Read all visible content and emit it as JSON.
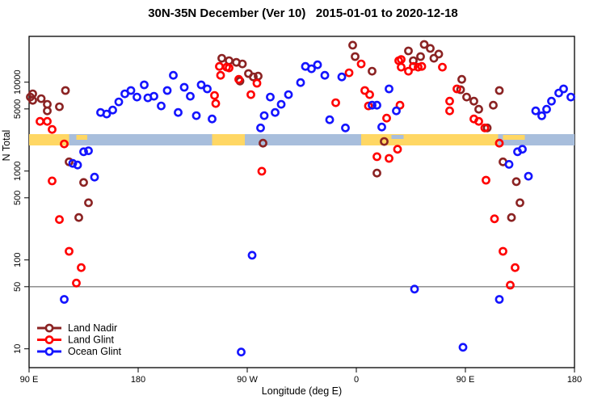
{
  "title": "30N-35N December (Ver 10)   2015-01-01 to 2020-12-18",
  "axes": {
    "x": {
      "label": "Longitude (deg E)",
      "ticks": [
        {
          "pos": 0,
          "label": "90 E"
        },
        {
          "pos": 90,
          "label": "180"
        },
        {
          "pos": 180,
          "label": "90 W"
        },
        {
          "pos": 270,
          "label": "0"
        },
        {
          "pos": 360,
          "label": "90 E"
        },
        {
          "pos": 450,
          "label": "180"
        }
      ],
      "range_deg_along_axis": [
        0,
        450
      ],
      "note": "axis runs 90E -> 180 -> 90W -> 0 -> 90E -> 180 (450 deg total)"
    },
    "y": {
      "label": "N Total",
      "scale": "log",
      "ticks": [
        "10",
        "50",
        "100",
        "500",
        "1000",
        "5000",
        "10000"
      ],
      "tick_values": [
        10,
        50,
        100,
        500,
        1000,
        5000,
        10000
      ],
      "range": [
        6,
        33000
      ]
    }
  },
  "reference_line": {
    "y_value": 50,
    "color": "#555555"
  },
  "surface_band": {
    "description": "land/ocean strip map across 30N-35N",
    "ocean_color": "#A8BEDC",
    "land_color": "#FFD764",
    "segments": [
      {
        "type": "land",
        "from": 0,
        "to": 33
      },
      {
        "type": "ocean",
        "from": 33,
        "to": 151
      },
      {
        "type": "land",
        "from": 151,
        "to": 178
      },
      {
        "type": "ocean",
        "from": 178,
        "to": 274
      },
      {
        "type": "land",
        "from": 274,
        "to": 387
      },
      {
        "type": "ocean",
        "from": 387,
        "to": 450
      }
    ],
    "islands_on_ocean": [
      {
        "from": 39,
        "to": 48
      },
      {
        "from": 391,
        "to": 409
      }
    ],
    "sea_on_land": [
      {
        "from": 299,
        "to": 309
      }
    ]
  },
  "legend": {
    "items": [
      {
        "label": "Land Nadir",
        "color": "#8B2323"
      },
      {
        "label": "Land Glint",
        "color": "#FF0000"
      },
      {
        "label": "Ocean Glint",
        "color": "#1414FF"
      }
    ]
  },
  "chart_data": {
    "type": "scatter",
    "x_unit": "degrees along axis from left edge (left edge = 90E, wraps eastward 450 deg)",
    "y_unit": "N Total (log scale)",
    "xlabel": "Longitude (deg E)",
    "ylabel": "N Total",
    "xlim": [
      0,
      450
    ],
    "ylim": [
      6,
      33000
    ],
    "legend_position": "bottom-left",
    "grid": false,
    "series": [
      {
        "name": "Land Nadir",
        "color": "#8B2323",
        "points": [
          [
            1,
            6800
          ],
          [
            3,
            7400
          ],
          [
            3,
            6250
          ],
          [
            10,
            6520
          ],
          [
            15,
            5630
          ],
          [
            15,
            4760
          ],
          [
            25,
            5290
          ],
          [
            30,
            8060
          ],
          [
            33,
            1270
          ],
          [
            45,
            745
          ],
          [
            49,
            440
          ],
          [
            41,
            300
          ],
          [
            159,
            18600
          ],
          [
            165,
            17450
          ],
          [
            171,
            16700
          ],
          [
            176,
            16050
          ],
          [
            174,
            10300
          ],
          [
            181,
            12500
          ],
          [
            185,
            11450
          ],
          [
            189,
            11700
          ],
          [
            193,
            2060
          ],
          [
            267,
            26100
          ],
          [
            269,
            19400
          ],
          [
            283,
            13300
          ],
          [
            287,
            950
          ],
          [
            293,
            2150
          ],
          [
            313,
            22500
          ],
          [
            317,
            17450
          ],
          [
            323,
            19400
          ],
          [
            326,
            26600
          ],
          [
            331,
            24000
          ],
          [
            334,
            18600
          ],
          [
            338,
            20700
          ],
          [
            356,
            8230
          ],
          [
            357,
            10750
          ],
          [
            361,
            6800
          ],
          [
            367,
            6120
          ],
          [
            371,
            4960
          ],
          [
            378,
            3060
          ],
          [
            383,
            5510
          ],
          [
            388,
            8060
          ],
          [
            391,
            1270
          ],
          [
            402,
            760
          ],
          [
            405,
            440
          ],
          [
            398,
            300
          ]
        ]
      },
      {
        "name": "Land Glint",
        "color": "#FF0000",
        "points": [
          [
            9,
            3620
          ],
          [
            15,
            3620
          ],
          [
            19,
            2940
          ],
          [
            29,
            2020
          ],
          [
            19,
            775
          ],
          [
            25,
            285
          ],
          [
            33,
            125
          ],
          [
            43,
            82
          ],
          [
            39,
            55
          ],
          [
            153,
            7090
          ],
          [
            154,
            5750
          ],
          [
            157,
            15050
          ],
          [
            158,
            11950
          ],
          [
            163,
            14750
          ],
          [
            165,
            14450
          ],
          [
            173,
            10750
          ],
          [
            183,
            7250
          ],
          [
            188,
            9730
          ],
          [
            192,
            995
          ],
          [
            253,
            5870
          ],
          [
            264,
            12750
          ],
          [
            274,
            16050
          ],
          [
            277,
            8060
          ],
          [
            281,
            7250
          ],
          [
            280,
            5400
          ],
          [
            295,
            3940
          ],
          [
            287,
            1450
          ],
          [
            297,
            1390
          ],
          [
            304,
            1760
          ],
          [
            305,
            17450
          ],
          [
            306,
            5510
          ],
          [
            307,
            18000
          ],
          [
            307,
            14750
          ],
          [
            313,
            13300
          ],
          [
            317,
            15050
          ],
          [
            321,
            14750
          ],
          [
            324,
            15050
          ],
          [
            341,
            14750
          ],
          [
            347,
            6120
          ],
          [
            347,
            4760
          ],
          [
            353,
            8400
          ],
          [
            367,
            3860
          ],
          [
            371,
            3620
          ],
          [
            376,
            3060
          ],
          [
            377,
            790
          ],
          [
            384,
            290
          ],
          [
            388,
            2060
          ],
          [
            391,
            125
          ],
          [
            401,
            82
          ],
          [
            397,
            52
          ]
        ]
      },
      {
        "name": "Ocean Glint",
        "color": "#1414FF",
        "points": [
          [
            29,
            36
          ],
          [
            36,
            1220
          ],
          [
            40,
            1170
          ],
          [
            45,
            1650
          ],
          [
            49,
            1690
          ],
          [
            54,
            855
          ],
          [
            59,
            4560
          ],
          [
            64,
            4380
          ],
          [
            69,
            4860
          ],
          [
            74,
            6000
          ],
          [
            79,
            7400
          ],
          [
            84,
            8060
          ],
          [
            89,
            6800
          ],
          [
            95,
            9330
          ],
          [
            98,
            6660
          ],
          [
            103,
            6950
          ],
          [
            109,
            5400
          ],
          [
            114,
            8060
          ],
          [
            119,
            11950
          ],
          [
            123,
            4560
          ],
          [
            128,
            8760
          ],
          [
            133,
            6950
          ],
          [
            138,
            4200
          ],
          [
            142,
            9330
          ],
          [
            147,
            8400
          ],
          [
            151,
            3860
          ],
          [
            175,
            9.2
          ],
          [
            184,
            113
          ],
          [
            191,
            3060
          ],
          [
            194,
            4200
          ],
          [
            199,
            6800
          ],
          [
            203,
            4560
          ],
          [
            208,
            5630
          ],
          [
            214,
            7250
          ],
          [
            224,
            9900
          ],
          [
            228,
            15050
          ],
          [
            233,
            14150
          ],
          [
            238,
            15700
          ],
          [
            244,
            11950
          ],
          [
            248,
            3780
          ],
          [
            258,
            11450
          ],
          [
            261,
            3060
          ],
          [
            283,
            5510
          ],
          [
            287,
            5510
          ],
          [
            291,
            3130
          ],
          [
            297,
            8400
          ],
          [
            303,
            4760
          ],
          [
            318,
            47
          ],
          [
            358,
            10.4
          ],
          [
            388,
            36
          ],
          [
            396,
            1190
          ],
          [
            403,
            1650
          ],
          [
            407,
            1760
          ],
          [
            412,
            875
          ],
          [
            418,
            4760
          ],
          [
            423,
            4190
          ],
          [
            427,
            4960
          ],
          [
            431,
            6120
          ],
          [
            437,
            7560
          ],
          [
            441,
            8400
          ],
          [
            447,
            6800
          ]
        ]
      }
    ]
  }
}
